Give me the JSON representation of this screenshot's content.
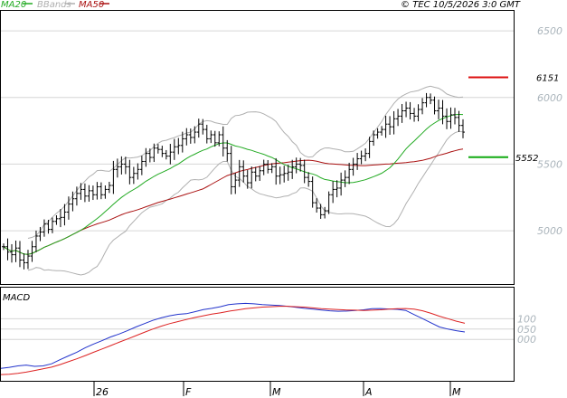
{
  "header": {
    "legend": [
      {
        "label": "MA20",
        "color": "#22aa22"
      },
      {
        "label": "BBands",
        "color": "#b0b0b0"
      },
      {
        "label": "MA50",
        "color": "#aa1111"
      }
    ],
    "copyright": "© TEC 10/5/2026 3:0 GMT"
  },
  "colors": {
    "bars": "#000000",
    "ma20": "#22aa22",
    "ma50": "#aa1111",
    "bbands": "#b0b0b0",
    "resistance": "#dd1111",
    "support": "#11aa11",
    "grid": "#d6d6d6",
    "macd": "#2233cc",
    "signal": "#dd2222",
    "axis_text": "#aab4bb"
  },
  "chart_data": [
    {
      "type": "ohlc",
      "ylim": [
        4600,
        6650
      ],
      "y_ticks": [
        6500,
        6000,
        5500,
        5000
      ],
      "y_tick_labels": [
        "6500",
        "6000",
        "5500",
        "5000"
      ],
      "x_labels": [
        "26",
        "F",
        "M",
        "A",
        "M"
      ],
      "levels": [
        {
          "name": "resistance",
          "value": 6151,
          "label": "6151"
        },
        {
          "name": "support",
          "value": 5552,
          "label": "5552"
        }
      ],
      "close": [
        4880,
        4840,
        4820,
        4870,
        4780,
        4760,
        4810,
        4880,
        4960,
        4990,
        5050,
        5010,
        5070,
        5090,
        5100,
        5140,
        5200,
        5240,
        5280,
        5310,
        5260,
        5300,
        5270,
        5330,
        5270,
        5310,
        5340,
        5460,
        5480,
        5500,
        5480,
        5400,
        5430,
        5460,
        5520,
        5580,
        5550,
        5620,
        5610,
        5580,
        5560,
        5590,
        5630,
        5640,
        5690,
        5720,
        5700,
        5740,
        5800,
        5760,
        5690,
        5720,
        5660,
        5720,
        5620,
        5580,
        5330,
        5380,
        5480,
        5410,
        5360,
        5440,
        5410,
        5450,
        5500,
        5460,
        5480,
        5410,
        5420,
        5430,
        5440,
        5480,
        5500,
        5490,
        5400,
        5370,
        5210,
        5170,
        5120,
        5150,
        5270,
        5310,
        5320,
        5380,
        5400,
        5460,
        5500,
        5540,
        5560,
        5580,
        5670,
        5720,
        5740,
        5760,
        5800,
        5780,
        5840,
        5860,
        5900,
        5920,
        5880,
        5860,
        5910,
        5960,
        6000,
        5980,
        5900,
        5920,
        5860,
        5820,
        5870,
        5850,
        5790,
        5740
      ]
    },
    {
      "type": "line",
      "title": "MACD",
      "ylim": [
        -200,
        250
      ],
      "y_ticks": [
        100,
        50,
        0
      ],
      "y_tick_labels": [
        "100",
        "050",
        "000"
      ],
      "series": [
        {
          "values": [
            -140,
            -135,
            -128,
            -124,
            -130,
            -128,
            -118,
            -98,
            -80,
            -62,
            -40,
            -22,
            -6,
            12,
            26,
            42,
            60,
            76,
            92,
            104,
            114,
            121,
            124,
            134,
            144,
            150,
            158,
            168,
            172,
            174,
            172,
            168,
            166,
            164,
            160,
            155,
            150,
            146,
            142,
            138,
            136,
            137,
            140,
            143,
            148,
            149,
            147,
            145,
            140,
            120,
            100,
            80,
            60,
            50,
            42,
            36
          ]
        },
        {
          "values": [
            -170,
            -168,
            -164,
            -158,
            -150,
            -142,
            -134,
            -122,
            -108,
            -94,
            -78,
            -62,
            -46,
            -30,
            -14,
            2,
            18,
            34,
            50,
            64,
            76,
            86,
            96,
            106,
            114,
            122,
            128,
            136,
            142,
            148,
            152,
            156,
            158,
            160,
            160,
            158,
            156,
            152,
            148,
            146,
            144,
            142,
            141,
            140,
            141,
            143,
            146,
            148,
            149,
            146,
            138,
            126,
            112,
            100,
            88,
            78
          ]
        }
      ]
    }
  ]
}
